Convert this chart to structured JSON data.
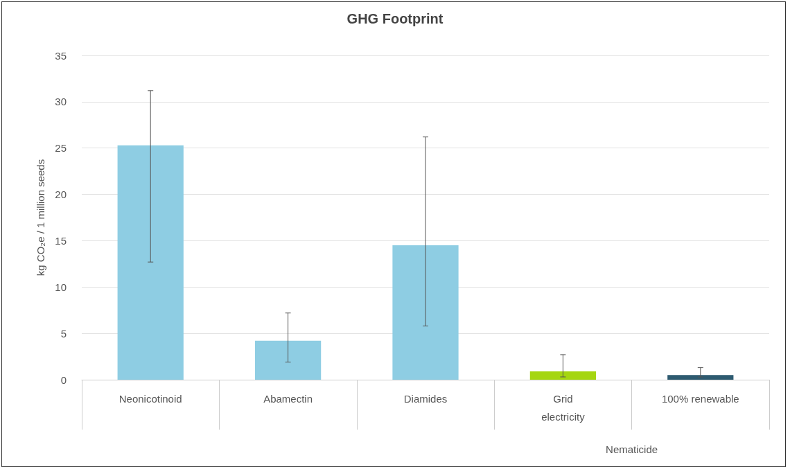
{
  "chart_data": {
    "type": "bar",
    "title": "GHG Footprint",
    "ylabel": "kg CO₂e / 1 million seeds",
    "categories": [
      "Neonicotinoid",
      "Abamectin",
      "Diamides",
      "Grid\nelectricity",
      "100% renewable"
    ],
    "values": [
      25.3,
      4.2,
      14.5,
      0.9,
      0.5
    ],
    "colors": [
      "#8ecde3",
      "#8ecde3",
      "#8ecde3",
      "#a5d610",
      "#2d5a70"
    ],
    "errors": [
      [
        12.7,
        31.2
      ],
      [
        1.9,
        7.2
      ],
      [
        5.8,
        26.2
      ],
      [
        0.3,
        2.7
      ],
      [
        0.3,
        1.3
      ]
    ],
    "annotations": [
      "Nematicide"
    ],
    "ylim": [
      0,
      35
    ],
    "yticks": [
      0,
      5,
      10,
      15,
      20,
      25,
      30,
      35
    ],
    "grid": "y"
  }
}
